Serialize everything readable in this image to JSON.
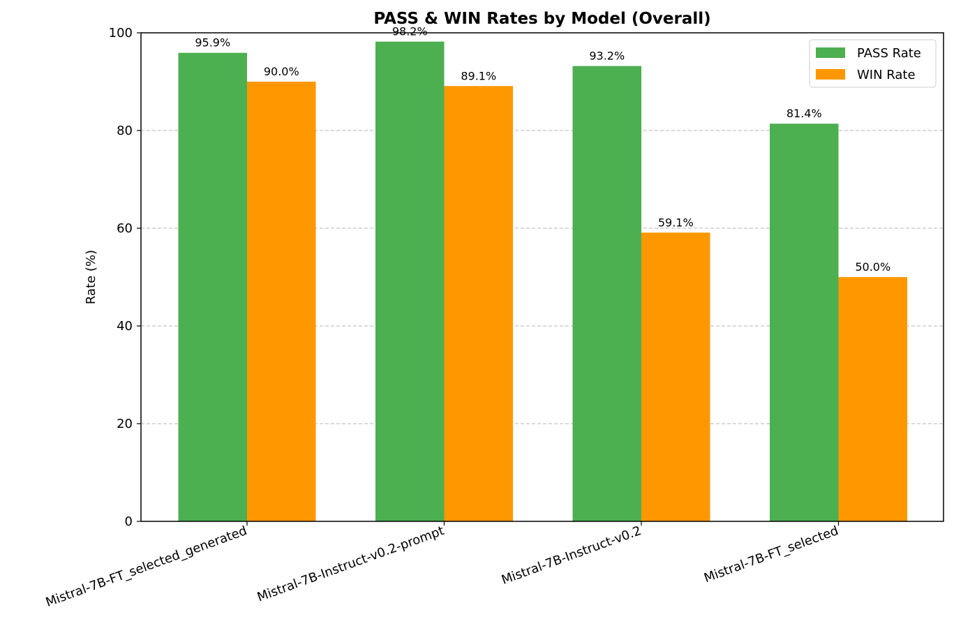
{
  "chart_data": {
    "type": "bar",
    "title": "PASS & WIN Rates by Model (Overall)",
    "xlabel": "",
    "ylabel": "Rate (%)",
    "ylim": [
      0,
      100
    ],
    "yticks": [
      0,
      20,
      40,
      60,
      80,
      100
    ],
    "grid": "y-dashed",
    "legend_position": "top-right",
    "categories": [
      "Mistral-7B-FT_selected_generated",
      "Mistral-7B-Instruct-v0.2-prompt",
      "Mistral-7B-Instruct-v0.2",
      "Mistral-7B-FT_selected"
    ],
    "series": [
      {
        "name": "PASS Rate",
        "color": "#4caf50",
        "values": [
          95.9,
          98.2,
          93.2,
          81.4
        ],
        "labels": [
          "95.9%",
          "98.2%",
          "93.2%",
          "81.4%"
        ]
      },
      {
        "name": "WIN Rate",
        "color": "#ff9800",
        "values": [
          90.0,
          89.1,
          59.1,
          50.0
        ],
        "labels": [
          "90.0%",
          "89.1%",
          "59.1%",
          "50.0%"
        ]
      }
    ]
  }
}
